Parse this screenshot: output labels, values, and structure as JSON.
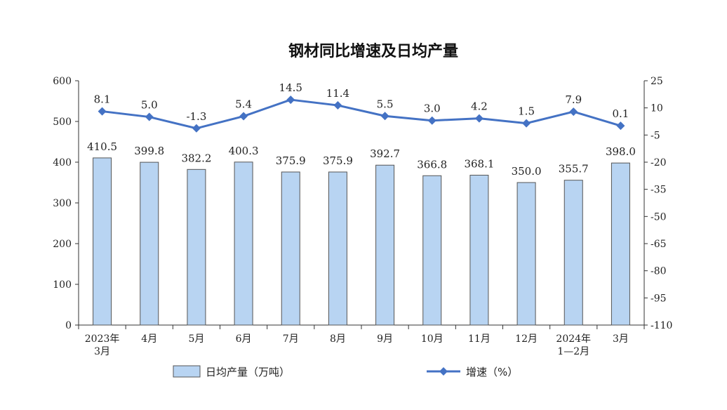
{
  "chart_data": {
    "type": "bar+line",
    "title": "钢材同比增速及日均产量",
    "categories": [
      [
        "2023年",
        "3月"
      ],
      [
        "4月"
      ],
      [
        "5月"
      ],
      [
        "6月"
      ],
      [
        "7月"
      ],
      [
        "8月"
      ],
      [
        "9月"
      ],
      [
        "10月"
      ],
      [
        "11月"
      ],
      [
        "12月"
      ],
      [
        "2024年",
        "1—2月"
      ],
      [
        "3月"
      ]
    ],
    "series": [
      {
        "name": "日均产量（万吨）",
        "type": "bar",
        "axis": "left",
        "color": "#b8d4f2",
        "values": [
          410.5,
          399.8,
          382.2,
          400.3,
          375.9,
          375.9,
          392.7,
          366.8,
          368.1,
          350.0,
          355.7,
          398.0
        ],
        "labels": [
          "410.5",
          "399.8",
          "382.2",
          "400.3",
          "375.9",
          "375.9",
          "392.7",
          "366.8",
          "368.1",
          "350.0",
          "355.7",
          "398.0"
        ]
      },
      {
        "name": "增速（%）",
        "type": "line",
        "axis": "right",
        "color": "#4472c4",
        "values": [
          8.1,
          5.0,
          -1.3,
          5.4,
          14.5,
          11.4,
          5.5,
          3.0,
          4.2,
          1.5,
          7.9,
          0.1
        ],
        "labels": [
          "8.1",
          "5.0",
          "-1.3",
          "5.4",
          "14.5",
          "11.4",
          "5.5",
          "3.0",
          "4.2",
          "1.5",
          "7.9",
          "0.1"
        ]
      }
    ],
    "y_left": {
      "ylim": [
        0,
        600
      ],
      "ticks": [
        "0",
        "100",
        "200",
        "300",
        "400",
        "500",
        "600"
      ]
    },
    "y_right": {
      "ylim": [
        -110,
        25
      ],
      "ticks": [
        "25",
        "10",
        "-5",
        "-20",
        "-35",
        "-50",
        "-65",
        "-80",
        "-95",
        "-110"
      ]
    },
    "grid": false,
    "legend_position": "bottom"
  }
}
